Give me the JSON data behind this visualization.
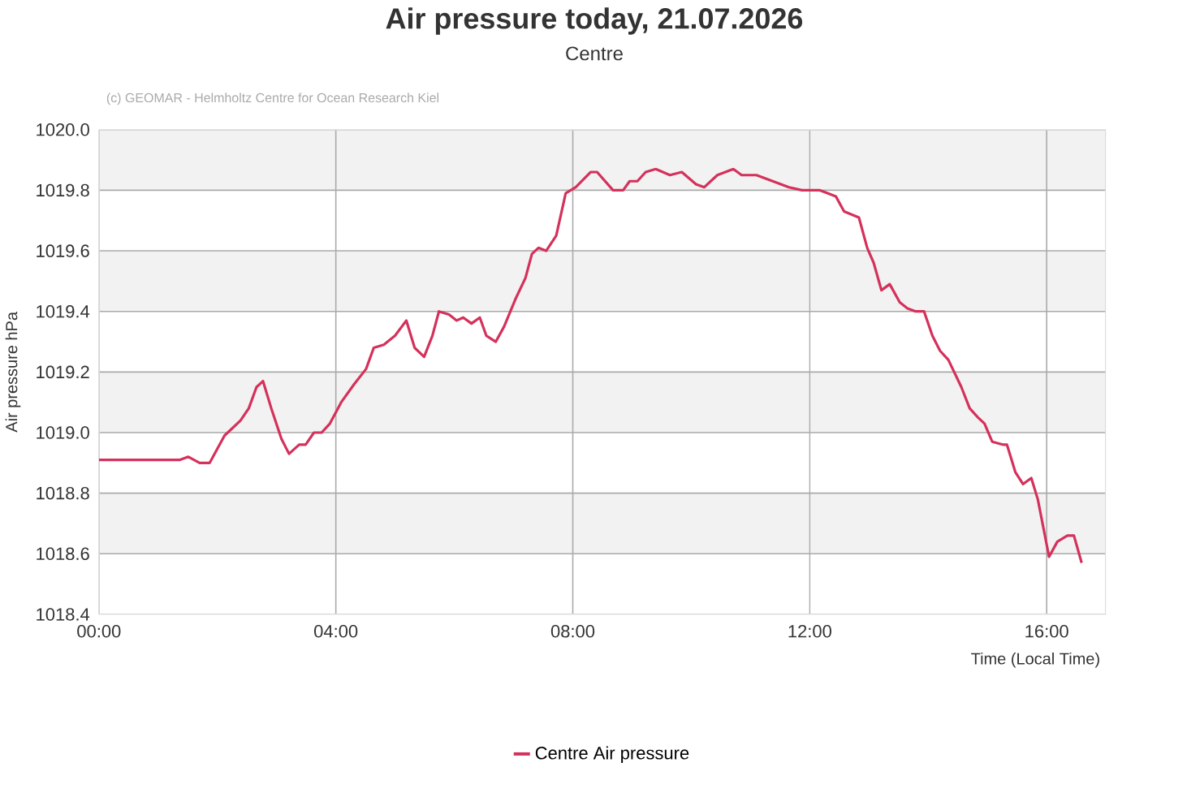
{
  "chart_data": {
    "type": "line",
    "title": "Air pressure today, 21.07.2026",
    "subtitle": "Centre",
    "annotations": [
      "(c) GEOMAR - Helmholtz Centre for Ocean Research Kiel"
    ],
    "xlabel": "Time (Local Time)",
    "ylabel": "Air pressure hPa",
    "xlim": [
      0,
      17
    ],
    "ylim": [
      1018.4,
      1020.0
    ],
    "xticks": [
      {
        "value": 0,
        "label": "00:00"
      },
      {
        "value": 4,
        "label": "04:00"
      },
      {
        "value": 8,
        "label": "08:00"
      },
      {
        "value": 12,
        "label": "12:00"
      },
      {
        "value": 16,
        "label": "16:00"
      }
    ],
    "yticks": [
      {
        "value": 1018.4,
        "label": "1018.4"
      },
      {
        "value": 1018.6,
        "label": "1018.6"
      },
      {
        "value": 1018.8,
        "label": "1018.8"
      },
      {
        "value": 1019.0,
        "label": "1019.0"
      },
      {
        "value": 1019.2,
        "label": "1019.2"
      },
      {
        "value": 1019.4,
        "label": "1019.4"
      },
      {
        "value": 1019.6,
        "label": "1019.6"
      },
      {
        "value": 1019.8,
        "label": "1019.8"
      },
      {
        "value": 1020.0,
        "label": "1020.0"
      }
    ],
    "bands": [
      {
        "axis": "y",
        "from": 1018.6,
        "to": 1018.8,
        "color": "#f2f2f2"
      },
      {
        "axis": "y",
        "from": 1019.0,
        "to": 1019.2,
        "color": "#f2f2f2"
      },
      {
        "axis": "y",
        "from": 1019.4,
        "to": 1019.6,
        "color": "#f2f2f2"
      },
      {
        "axis": "y",
        "from": 1019.8,
        "to": 1020.0,
        "color": "#f2f2f2"
      }
    ],
    "grid": true,
    "legend": "bottom",
    "marker": "none",
    "line_style": "solid",
    "series": [
      {
        "name": "Centre Air pressure",
        "color": "#d4315b",
        "x": [
          0,
          1.37,
          1.51,
          1.7,
          1.87,
          2.12,
          2.39,
          2.53,
          2.66,
          2.77,
          2.91,
          3.08,
          3.21,
          3.38,
          3.49,
          3.63,
          3.76,
          3.9,
          4.09,
          4.31,
          4.51,
          4.64,
          4.81,
          5.0,
          5.19,
          5.33,
          5.49,
          5.63,
          5.74,
          5.91,
          6.04,
          6.15,
          6.29,
          6.43,
          6.54,
          6.7,
          6.84,
          7.03,
          7.2,
          7.31,
          7.42,
          7.55,
          7.72,
          7.88,
          8.05,
          8.3,
          8.41,
          8.68,
          8.85,
          8.96,
          9.09,
          9.23,
          9.4,
          9.64,
          9.84,
          10.08,
          10.22,
          10.44,
          10.71,
          10.85,
          11.1,
          11.65,
          11.87,
          12.0,
          12.17,
          12.44,
          12.58,
          12.83,
          12.97,
          13.08,
          13.21,
          13.35,
          13.52,
          13.65,
          13.79,
          13.93,
          14.07,
          14.2,
          14.34,
          14.56,
          14.7,
          14.84,
          14.95,
          15.08,
          15.27,
          15.33,
          15.47,
          15.6,
          15.74,
          15.85,
          16.04,
          16.18,
          16.35,
          16.46,
          16.59
        ],
        "values": [
          1018.91,
          1018.91,
          1018.92,
          1018.9,
          1018.9,
          1018.99,
          1019.04,
          1019.08,
          1019.15,
          1019.17,
          1019.08,
          1018.98,
          1018.93,
          1018.96,
          1018.96,
          1019.0,
          1019.0,
          1019.03,
          1019.1,
          1019.16,
          1019.21,
          1019.28,
          1019.29,
          1019.32,
          1019.37,
          1019.28,
          1019.25,
          1019.32,
          1019.4,
          1019.39,
          1019.37,
          1019.38,
          1019.36,
          1019.38,
          1019.32,
          1019.3,
          1019.35,
          1019.44,
          1019.51,
          1019.59,
          1019.61,
          1019.6,
          1019.65,
          1019.79,
          1019.81,
          1019.86,
          1019.86,
          1019.8,
          1019.8,
          1019.83,
          1019.83,
          1019.86,
          1019.87,
          1019.85,
          1019.86,
          1019.82,
          1019.81,
          1019.85,
          1019.87,
          1019.85,
          1019.85,
          1019.81,
          1019.8,
          1019.8,
          1019.8,
          1019.78,
          1019.73,
          1019.71,
          1019.61,
          1019.56,
          1019.47,
          1019.49,
          1019.43,
          1019.41,
          1019.4,
          1019.4,
          1019.32,
          1019.27,
          1019.24,
          1019.15,
          1019.08,
          1019.05,
          1019.03,
          1018.97,
          1018.96,
          1018.96,
          1018.87,
          1018.83,
          1018.85,
          1018.78,
          1018.59,
          1018.64,
          1018.66,
          1018.66,
          1018.57
        ]
      }
    ]
  }
}
